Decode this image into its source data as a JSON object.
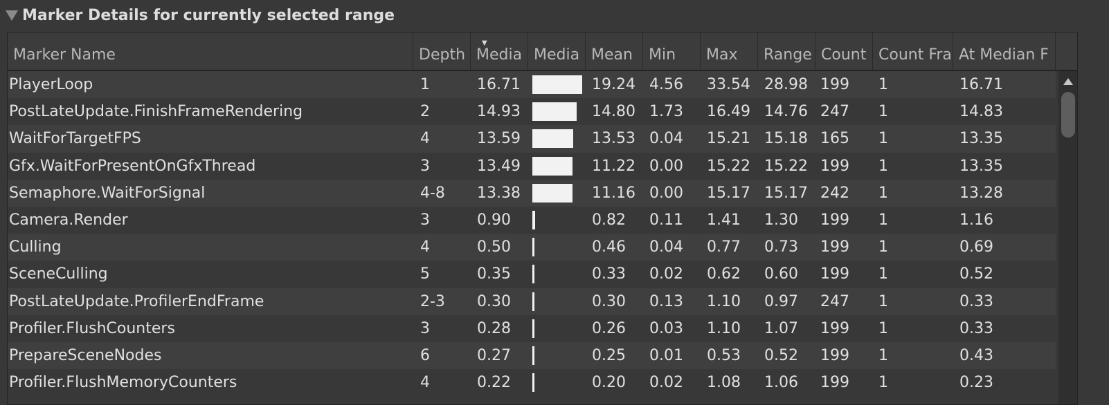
{
  "section": {
    "title": "Marker Details for currently selected range"
  },
  "columns": [
    "Marker Name",
    "Depth",
    "Media",
    "Media",
    "Mean",
    "Min",
    "Max",
    "Range",
    "Count",
    "Count Fra",
    "At Median F"
  ],
  "sort_indicator": "▼",
  "rows": [
    {
      "name": "PlayerLoop",
      "depth": "1",
      "median": "16.71",
      "bar_fraction": 1.0,
      "mean": "19.24",
      "min": "4.56",
      "max": "33.54",
      "range": "28.98",
      "count": "199",
      "count_frame": "1",
      "at_median": "16.71"
    },
    {
      "name": "PostLateUpdate.FinishFrameRendering",
      "depth": "2",
      "median": "14.93",
      "bar_fraction": 0.893,
      "mean": "14.80",
      "min": "1.73",
      "max": "16.49",
      "range": "14.76",
      "count": "247",
      "count_frame": "1",
      "at_median": "14.83"
    },
    {
      "name": "WaitForTargetFPS",
      "depth": "4",
      "median": "13.59",
      "bar_fraction": 0.813,
      "mean": "13.53",
      "min": "0.04",
      "max": "15.21",
      "range": "15.18",
      "count": "165",
      "count_frame": "1",
      "at_median": "13.35"
    },
    {
      "name": "Gfx.WaitForPresentOnGfxThread",
      "depth": "3",
      "median": "13.49",
      "bar_fraction": 0.807,
      "mean": "11.22",
      "min": "0.00",
      "max": "15.22",
      "range": "15.22",
      "count": "199",
      "count_frame": "1",
      "at_median": "13.35"
    },
    {
      "name": "Semaphore.WaitForSignal",
      "depth": "4-8",
      "median": "13.38",
      "bar_fraction": 0.8,
      "mean": "11.16",
      "min": "0.00",
      "max": "15.17",
      "range": "15.17",
      "count": "242",
      "count_frame": "1",
      "at_median": "13.28"
    },
    {
      "name": "Camera.Render",
      "depth": "3",
      "median": "0.90",
      "bar_fraction": 0.054,
      "mean": "0.82",
      "min": "0.11",
      "max": "1.41",
      "range": "1.30",
      "count": "199",
      "count_frame": "1",
      "at_median": "1.16"
    },
    {
      "name": "Culling",
      "depth": "4",
      "median": "0.50",
      "bar_fraction": 0.03,
      "mean": "0.46",
      "min": "0.04",
      "max": "0.77",
      "range": "0.73",
      "count": "199",
      "count_frame": "1",
      "at_median": "0.69"
    },
    {
      "name": "SceneCulling",
      "depth": "5",
      "median": "0.35",
      "bar_fraction": 0.021,
      "mean": "0.33",
      "min": "0.02",
      "max": "0.62",
      "range": "0.60",
      "count": "199",
      "count_frame": "1",
      "at_median": "0.52"
    },
    {
      "name": "PostLateUpdate.ProfilerEndFrame",
      "depth": "2-3",
      "median": "0.30",
      "bar_fraction": 0.018,
      "mean": "0.30",
      "min": "0.13",
      "max": "1.10",
      "range": "0.97",
      "count": "247",
      "count_frame": "1",
      "at_median": "0.33"
    },
    {
      "name": "Profiler.FlushCounters",
      "depth": "3",
      "median": "0.28",
      "bar_fraction": 0.017,
      "mean": "0.26",
      "min": "0.03",
      "max": "1.10",
      "range": "1.07",
      "count": "199",
      "count_frame": "1",
      "at_median": "0.33"
    },
    {
      "name": "PrepareSceneNodes",
      "depth": "6",
      "median": "0.27",
      "bar_fraction": 0.016,
      "mean": "0.25",
      "min": "0.01",
      "max": "0.53",
      "range": "0.52",
      "count": "199",
      "count_frame": "1",
      "at_median": "0.43"
    },
    {
      "name": "Profiler.FlushMemoryCounters",
      "depth": "4",
      "median": "0.22",
      "bar_fraction": 0.013,
      "mean": "0.20",
      "min": "0.02",
      "max": "1.08",
      "range": "1.06",
      "count": "199",
      "count_frame": "1",
      "at_median": "0.23"
    }
  ]
}
